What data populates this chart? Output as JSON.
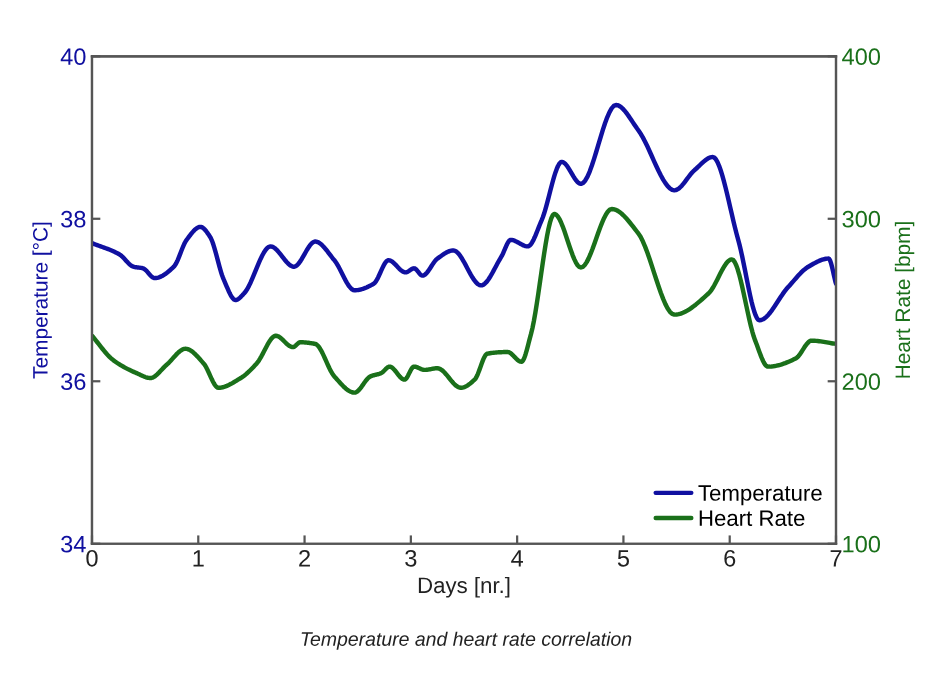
{
  "chart_data": {
    "type": "line",
    "xlabel": "Days [nr.]",
    "ylabel": "Temperature [°C]",
    "y2label": "Heart Rate [bpm]",
    "annotations": [
      "Temperature and heart rate correlation"
    ],
    "xlim": [
      0,
      7
    ],
    "xticks": [
      0,
      1,
      2,
      3,
      4,
      5,
      6,
      7
    ],
    "ylim": [
      34,
      40
    ],
    "yticks": [
      34,
      36,
      38,
      40
    ],
    "y2lim": [
      100,
      400
    ],
    "y2ticks": [
      100,
      200,
      300,
      400
    ],
    "legend": "bottom right",
    "grid": false,
    "line_style": "solid",
    "series": [
      {
        "name": "Temperature",
        "color": "#1010a0",
        "x": [
          0,
          0.26,
          0.39,
          0.48,
          0.59,
          0.77,
          0.89,
          1.02,
          1.11,
          1.24,
          1.35,
          1.43,
          1.68,
          1.9,
          2.1,
          2.28,
          2.47,
          2.65,
          2.79,
          2.95,
          3.03,
          3.11,
          3.25,
          3.4,
          3.66,
          3.85,
          3.94,
          4.1,
          4.23,
          4.42,
          4.6,
          4.93,
          5.14,
          5.48,
          5.67,
          5.84,
          6.08,
          6.28,
          6.55,
          6.74,
          6.93,
          7.0
        ],
        "values": [
          37.7,
          37.56,
          37.41,
          37.39,
          37.27,
          37.41,
          37.74,
          37.9,
          37.78,
          37.25,
          37.0,
          37.08,
          37.66,
          37.41,
          37.72,
          37.49,
          37.12,
          37.2,
          37.49,
          37.34,
          37.39,
          37.3,
          37.51,
          37.61,
          37.18,
          37.53,
          37.74,
          37.66,
          37.98,
          38.7,
          38.43,
          39.4,
          39.09,
          38.35,
          38.6,
          38.76,
          37.74,
          36.75,
          37.16,
          37.41,
          37.51,
          37.2
        ]
      },
      {
        "name": "Heart Rate",
        "color": "#1a701a",
        "axis": "y2",
        "x": [
          0,
          0.2,
          0.42,
          0.55,
          0.7,
          0.88,
          1.05,
          1.19,
          1.4,
          1.55,
          1.73,
          1.89,
          1.96,
          2.1,
          2.28,
          2.47,
          2.62,
          2.72,
          2.8,
          2.94,
          3.03,
          3.13,
          3.25,
          3.47,
          3.6,
          3.72,
          3.91,
          4.04,
          4.13,
          4.35,
          4.6,
          4.89,
          5.14,
          5.48,
          5.8,
          6.02,
          6.24,
          6.36,
          6.62,
          6.77,
          7.0
        ],
        "values": [
          228,
          213,
          205,
          202,
          210,
          220,
          211,
          196,
          202,
          211,
          228,
          221,
          224,
          223,
          203,
          193,
          203,
          205,
          209,
          201,
          209,
          207,
          208,
          196,
          201,
          217,
          218,
          212,
          229,
          303,
          270,
          306,
          291,
          241,
          254,
          275,
          225,
          209,
          214,
          225,
          223
        ]
      }
    ]
  }
}
